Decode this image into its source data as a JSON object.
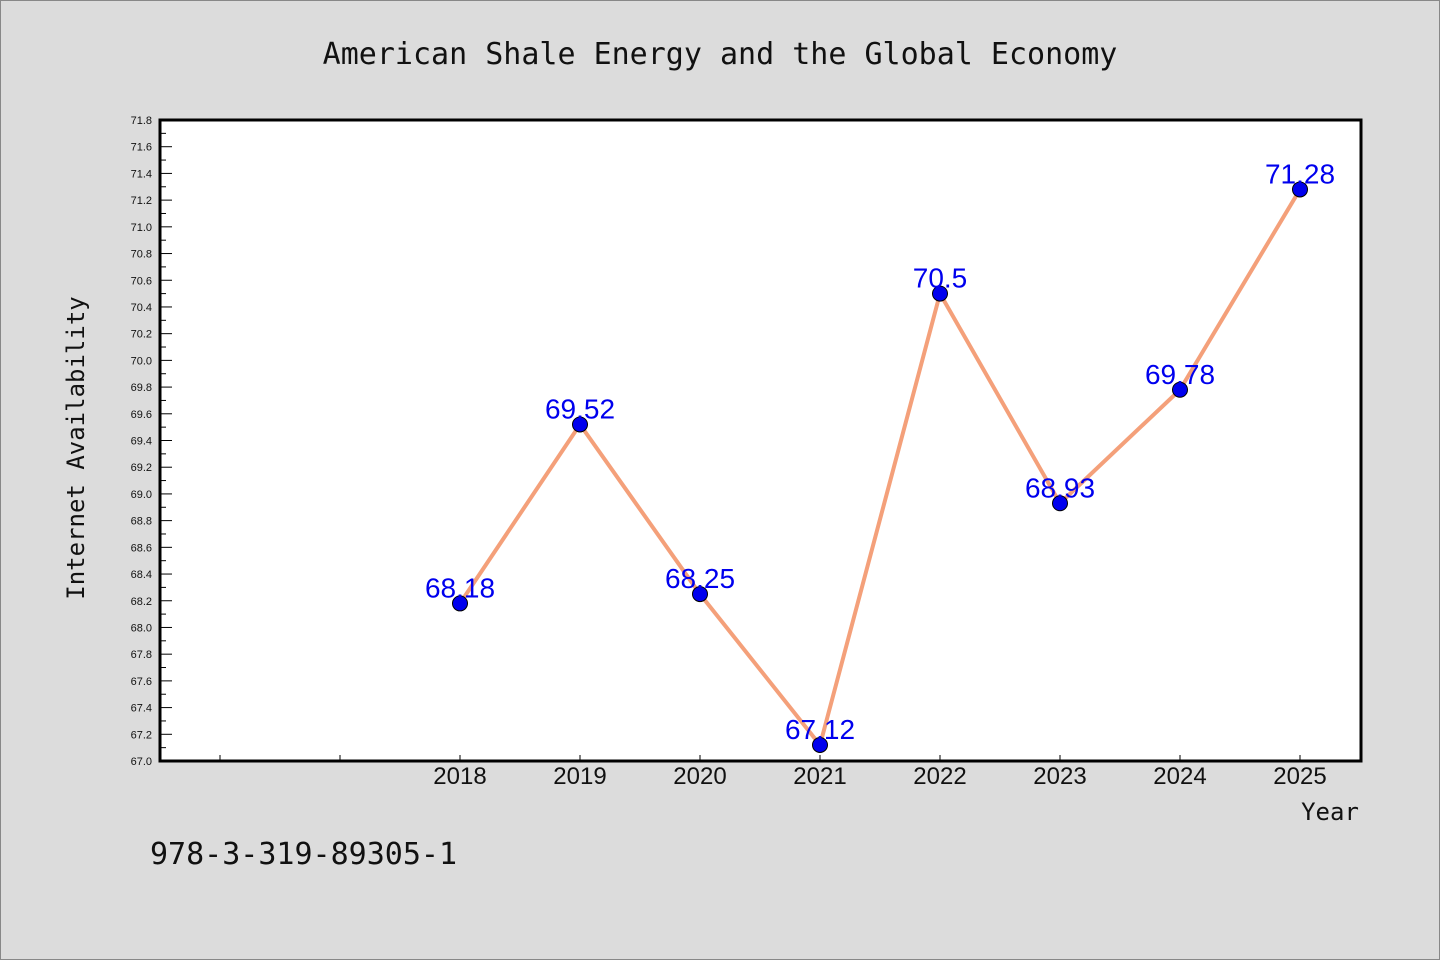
{
  "chart_data": {
    "type": "line",
    "title": "American Shale Energy and the Global Economy",
    "xlabel": "Year",
    "ylabel": "Internet Availability",
    "x": [
      "2018",
      "2019",
      "2020",
      "2021",
      "2022",
      "2023",
      "2024",
      "2025"
    ],
    "values": [
      68.18,
      69.52,
      68.25,
      67.12,
      70.5,
      68.93,
      69.78,
      71.28
    ],
    "data_labels": [
      "68.18",
      "69.52",
      "68.25",
      "67.12",
      "70.5",
      "68.93",
      "69.78",
      "71.28"
    ],
    "ylim": [
      67.0,
      71.8
    ],
    "y_ticks": [
      "67.0",
      "67.2",
      "67.4",
      "67.6",
      "67.8",
      "68.0",
      "68.2",
      "68.4",
      "68.6",
      "68.8",
      "69.0",
      "69.2",
      "69.4",
      "69.6",
      "69.8",
      "70.0",
      "70.2",
      "70.4",
      "70.6",
      "70.8",
      "71.0",
      "71.2",
      "71.4",
      "71.6",
      "71.8"
    ],
    "grid": false,
    "line_color": "#f4a07a",
    "marker_color": "#0000ee",
    "label_color": "#0000ee",
    "background_color": "#dcdcdc",
    "plot_background": "#ffffff"
  },
  "footer": {
    "isbn": "978-3-319-89305-1"
  }
}
